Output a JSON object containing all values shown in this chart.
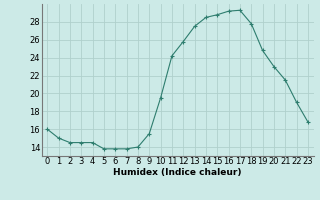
{
  "x": [
    0,
    1,
    2,
    3,
    4,
    5,
    6,
    7,
    8,
    9,
    10,
    11,
    12,
    13,
    14,
    15,
    16,
    17,
    18,
    19,
    20,
    21,
    22,
    23
  ],
  "y": [
    16.0,
    15.0,
    14.5,
    14.5,
    14.5,
    13.8,
    13.8,
    13.8,
    14.0,
    15.5,
    19.5,
    24.2,
    25.8,
    27.5,
    28.5,
    28.8,
    29.2,
    29.3,
    27.8,
    24.8,
    23.0,
    21.5,
    19.0,
    16.8
  ],
  "line_color": "#2e7d6e",
  "marker": "+",
  "marker_size": 3,
  "bg_color": "#cceae7",
  "grid_color": "#b0d0cc",
  "xlabel": "Humidex (Indice chaleur)",
  "ylim": [
    13,
    30
  ],
  "xlim": [
    -0.5,
    23.5
  ],
  "yticks": [
    14,
    16,
    18,
    20,
    22,
    24,
    26,
    28
  ],
  "xticks": [
    0,
    1,
    2,
    3,
    4,
    5,
    6,
    7,
    8,
    9,
    10,
    11,
    12,
    13,
    14,
    15,
    16,
    17,
    18,
    19,
    20,
    21,
    22,
    23
  ],
  "xtick_labels": [
    "0",
    "1",
    "2",
    "3",
    "4",
    "5",
    "6",
    "7",
    "8",
    "9",
    "10",
    "11",
    "12",
    "13",
    "14",
    "15",
    "16",
    "17",
    "18",
    "19",
    "20",
    "21",
    "22",
    "23"
  ],
  "xlabel_fontsize": 6.5,
  "tick_fontsize": 6
}
